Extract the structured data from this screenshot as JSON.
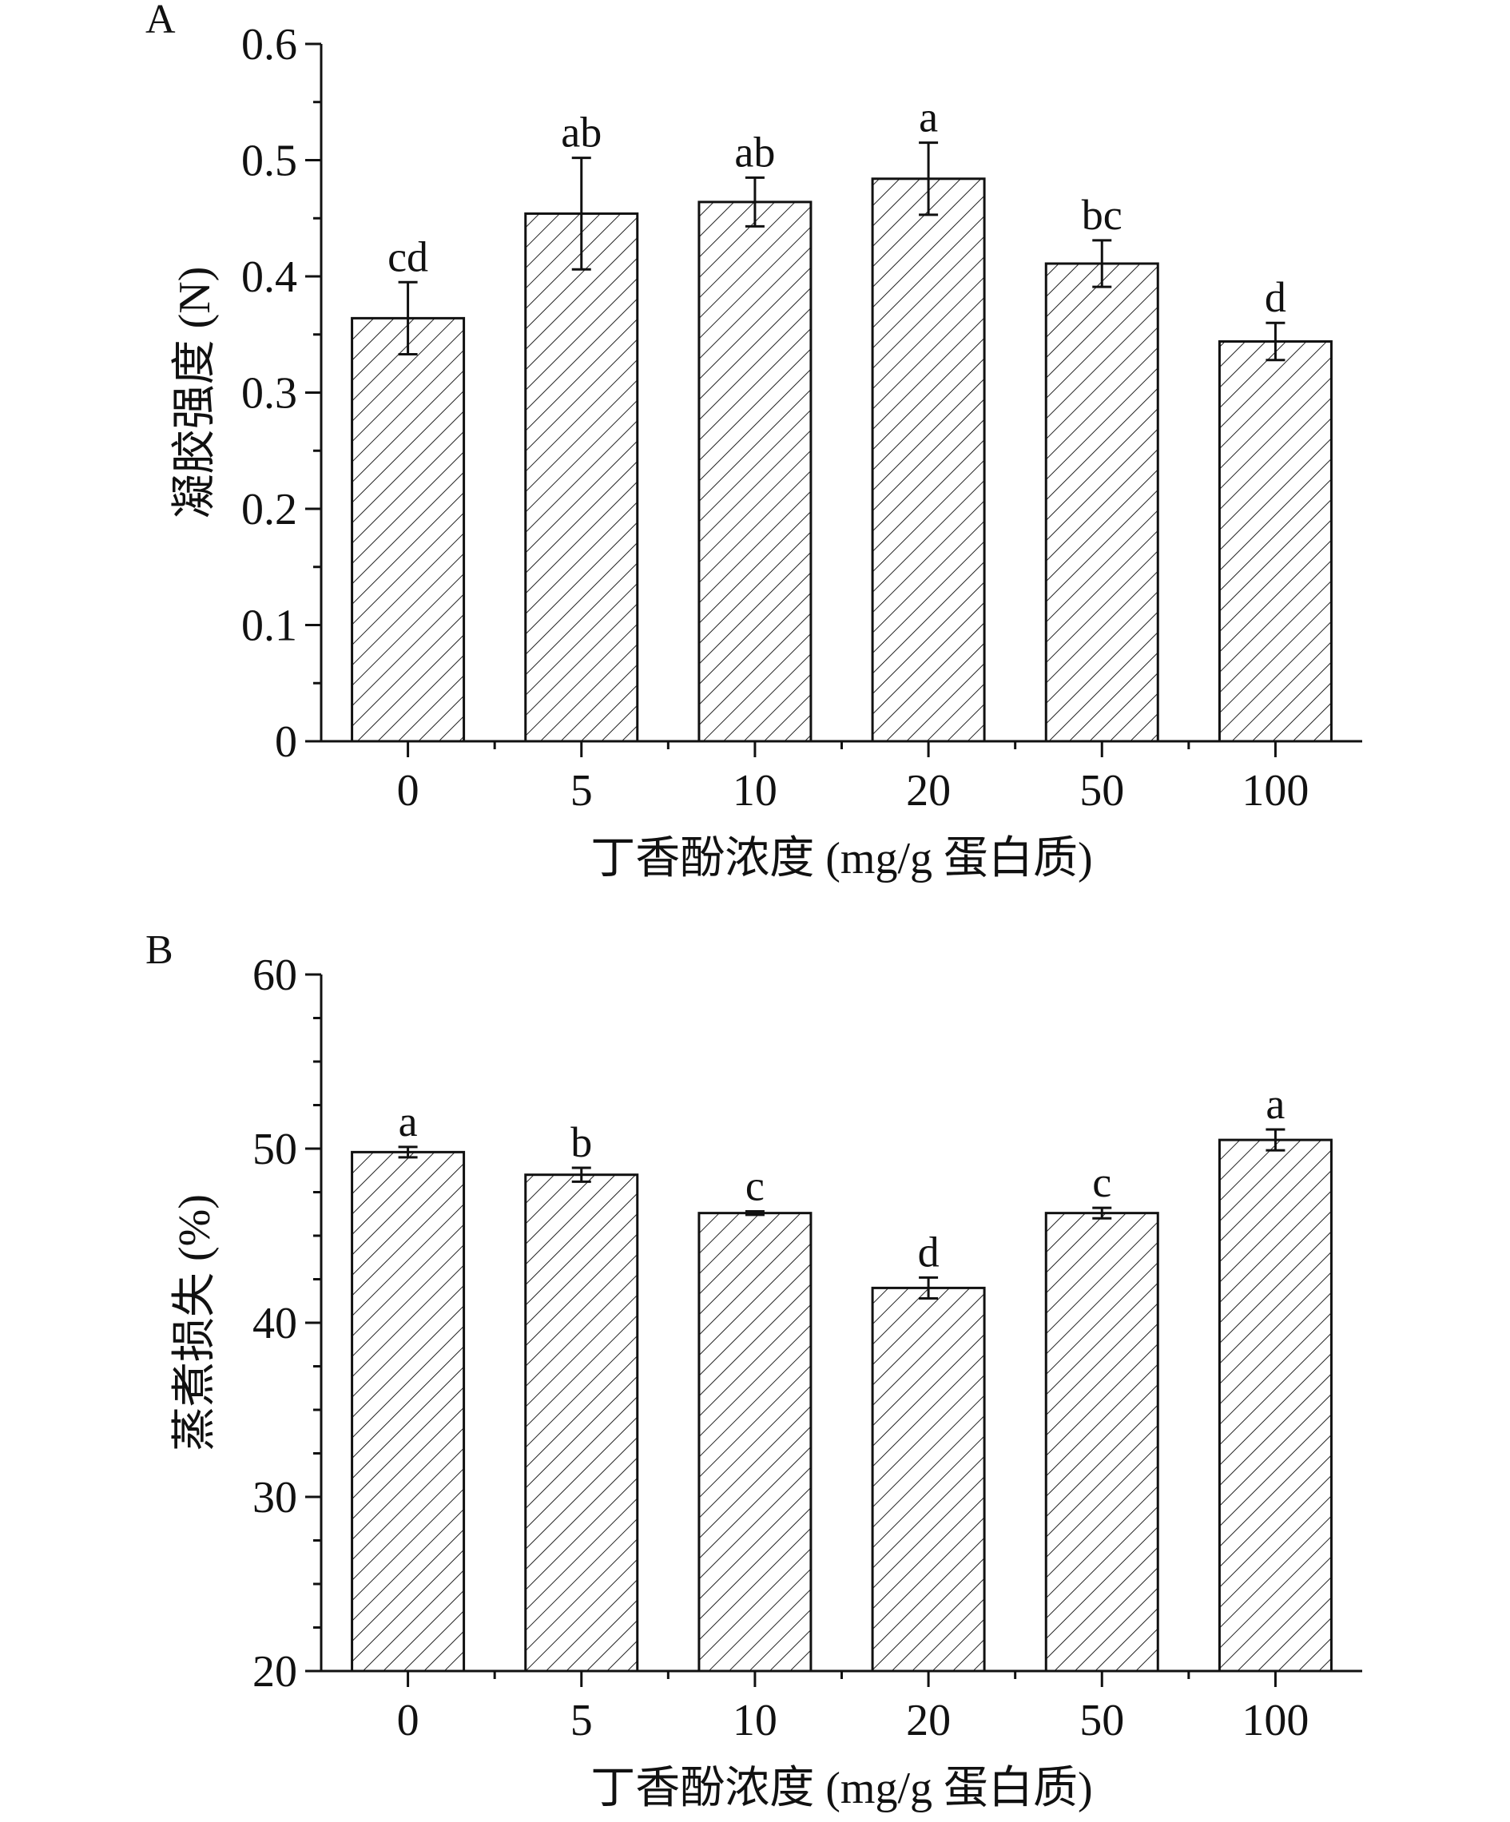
{
  "chart_data": [
    {
      "type": "bar",
      "panel_label": "A",
      "categories": [
        "0",
        "5",
        "10",
        "20",
        "50",
        "100"
      ],
      "values": [
        0.364,
        0.454,
        0.464,
        0.484,
        0.411,
        0.344
      ],
      "errors": [
        0.031,
        0.048,
        0.021,
        0.031,
        0.02,
        0.016
      ],
      "significance": [
        "cd",
        "ab",
        "ab",
        "a",
        "bc",
        "d"
      ],
      "xlabel": "丁香酚浓度 (mg/g 蛋白质)",
      "ylabel": "凝胶强度 (N)",
      "ylim": [
        0,
        0.6
      ],
      "yticks": [
        0,
        0.1,
        0.2,
        0.3,
        0.4,
        0.5,
        0.6
      ],
      "ytick_labels": [
        "0",
        "0.1",
        "0.2",
        "0.3",
        "0.4",
        "0.5",
        "0.6"
      ],
      "bar_pattern": "diagonal-hatch",
      "grid": false
    },
    {
      "type": "bar",
      "panel_label": "B",
      "categories": [
        "0",
        "5",
        "10",
        "20",
        "50",
        "100"
      ],
      "values": [
        49.8,
        48.5,
        46.3,
        42.0,
        46.3,
        50.5
      ],
      "errors": [
        0.3,
        0.4,
        0.1,
        0.6,
        0.3,
        0.6
      ],
      "significance": [
        "a",
        "b",
        "c",
        "d",
        "c",
        "a"
      ],
      "xlabel": "丁香酚浓度 (mg/g 蛋白质)",
      "ylabel": "蒸煮损失 (%)",
      "ylim": [
        20,
        60
      ],
      "yticks": [
        20,
        30,
        40,
        50,
        60
      ],
      "ytick_labels": [
        "20",
        "30",
        "40",
        "50",
        "60"
      ],
      "bar_pattern": "diagonal-hatch",
      "grid": false
    }
  ]
}
